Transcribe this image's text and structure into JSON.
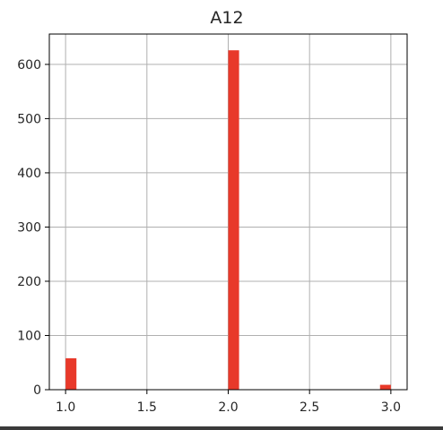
{
  "chart_data": {
    "type": "bar",
    "title": "A12",
    "xlabel": "",
    "ylabel": "",
    "xlim": [
      0.9,
      3.1
    ],
    "ylim": [
      0,
      656
    ],
    "x_ticks": [
      "1.0",
      "1.5",
      "2.0",
      "2.5",
      "3.0"
    ],
    "y_ticks": [
      "0",
      "100",
      "200",
      "300",
      "400",
      "500",
      "600"
    ],
    "grid": true,
    "bar_color": "#e8392a",
    "bins": [
      {
        "x_start": 1.0,
        "x_end": 1.0667,
        "count": 58
      },
      {
        "x_start": 2.0,
        "x_end": 2.0667,
        "count": 626
      },
      {
        "x_start": 2.9333,
        "x_end": 3.0,
        "count": 9
      }
    ]
  }
}
